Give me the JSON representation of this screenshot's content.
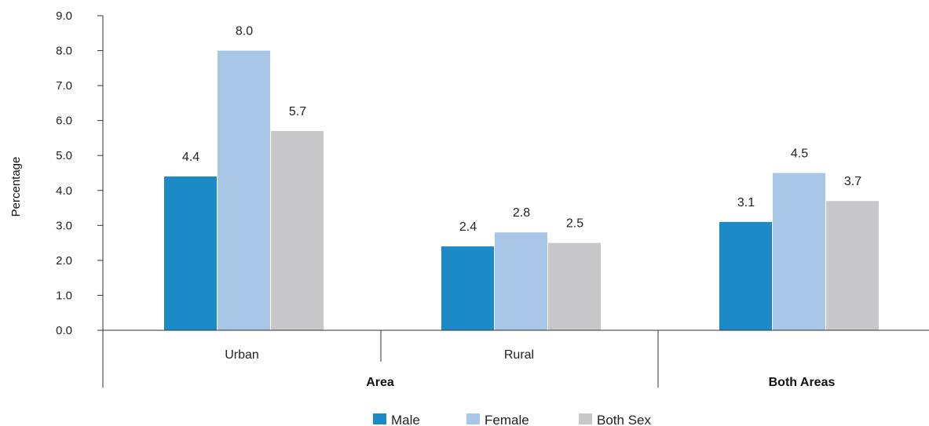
{
  "chart_data": {
    "type": "bar",
    "title": "",
    "ylabel": "Percentage",
    "ylim": [
      0,
      9
    ],
    "yticks": [
      "0.0",
      "1.0",
      "2.0",
      "3.0",
      "4.0",
      "5.0",
      "6.0",
      "7.0",
      "8.0",
      "9.0"
    ],
    "categories": [
      "Urban",
      "Rural",
      "Both Areas"
    ],
    "category_groups": [
      {
        "label": "Area",
        "categories": [
          "Urban",
          "Rural"
        ]
      },
      {
        "label": "Both Areas",
        "categories": [
          "Both Areas"
        ]
      }
    ],
    "series": [
      {
        "name": "Male",
        "color": "#1b8ac6",
        "values": [
          4.4,
          2.4,
          3.1
        ],
        "labels": [
          "4.4",
          "2.4",
          "3.1"
        ]
      },
      {
        "name": "Female",
        "color": "#a8c6e6",
        "values": [
          8.0,
          2.8,
          4.5
        ],
        "labels": [
          "8.0",
          "2.8",
          "4.5"
        ]
      },
      {
        "name": "Both Sex",
        "color": "#c8c8ca",
        "values": [
          5.7,
          2.5,
          3.7
        ],
        "labels": [
          "5.7",
          "2.5",
          "3.7"
        ]
      }
    ],
    "grid": false,
    "legend_position": "bottom-center"
  }
}
